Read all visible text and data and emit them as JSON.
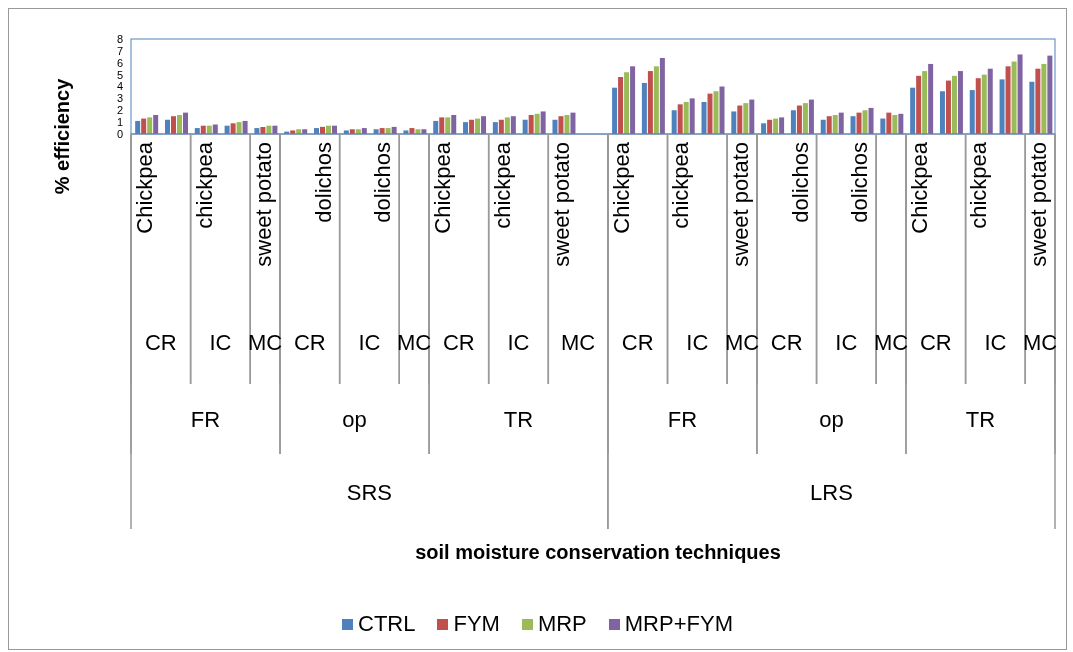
{
  "chart_data": {
    "type": "bar",
    "ylabel": "% efficiency",
    "categories": [
      "Chickpea",
      null,
      "chickpea",
      null,
      "sweet potato",
      null,
      "dolichos",
      null,
      "dolichos",
      null,
      "Chickpea",
      null,
      "chickpea",
      null,
      "sweet potato",
      null,
      "Chickpea",
      null,
      "chickpea",
      null,
      "sweet potato",
      null,
      "dolichos",
      null,
      "dolichos",
      null,
      "Chickpea",
      null,
      "chickpea",
      null,
      "sweet potato"
    ],
    "annotations": [
      "CR",
      "IC",
      "MC",
      "CR",
      "IC",
      "MC",
      "CR",
      "IC",
      "MC",
      "CR",
      "IC",
      "MC",
      "CR",
      "IC",
      "MC",
      "CR",
      "IC",
      "MC",
      "FR",
      "op",
      "TR",
      "FR",
      "op",
      "TR",
      "SRS",
      "LRS",
      "soil moisture conservation techniques"
    ],
    "series": [
      {
        "name": "CTRL",
        "color": "#4f81bd",
        "values": [
          1.1,
          1.2,
          0.5,
          0.7,
          0.5,
          0.2,
          0.5,
          0.3,
          0.4,
          0.3,
          1.1,
          1.0,
          1.0,
          1.2,
          1.2,
          null,
          3.9,
          4.3,
          2.0,
          2.7,
          1.9,
          0.9,
          2.0,
          1.2,
          1.5,
          1.3,
          3.9,
          3.6,
          3.7,
          4.6,
          4.4
        ]
      },
      {
        "name": "FYM",
        "color": "#c0504d",
        "values": [
          1.3,
          1.5,
          0.7,
          0.9,
          0.6,
          0.3,
          0.6,
          0.4,
          0.5,
          0.5,
          1.4,
          1.2,
          1.2,
          1.6,
          1.5,
          null,
          4.8,
          5.3,
          2.5,
          3.4,
          2.4,
          1.2,
          2.4,
          1.5,
          1.8,
          1.8,
          4.9,
          4.5,
          4.7,
          5.7,
          5.5
        ]
      },
      {
        "name": "MRP",
        "color": "#9bbb59",
        "values": [
          1.4,
          1.6,
          0.7,
          1.0,
          0.7,
          0.4,
          0.7,
          0.4,
          0.5,
          0.4,
          1.4,
          1.3,
          1.4,
          1.7,
          1.6,
          null,
          5.2,
          5.7,
          2.7,
          3.6,
          2.6,
          1.3,
          2.6,
          1.6,
          2.0,
          1.6,
          5.3,
          4.9,
          5.0,
          6.1,
          5.9
        ]
      },
      {
        "name": "MRP+FYM",
        "color": "#8064a2",
        "values": [
          1.6,
          1.8,
          0.8,
          1.1,
          0.7,
          0.4,
          0.7,
          0.5,
          0.6,
          0.4,
          1.6,
          1.5,
          1.5,
          1.9,
          1.8,
          null,
          5.7,
          6.4,
          3.0,
          4.0,
          2.9,
          1.4,
          2.9,
          1.8,
          2.2,
          1.7,
          5.9,
          5.3,
          5.5,
          6.7,
          6.6
        ]
      }
    ],
    "ylim": [
      0,
      8
    ],
    "yticks": [
      0,
      1,
      2,
      3,
      4,
      5,
      6,
      7,
      8
    ],
    "grid": false,
    "legend": "bottom"
  }
}
